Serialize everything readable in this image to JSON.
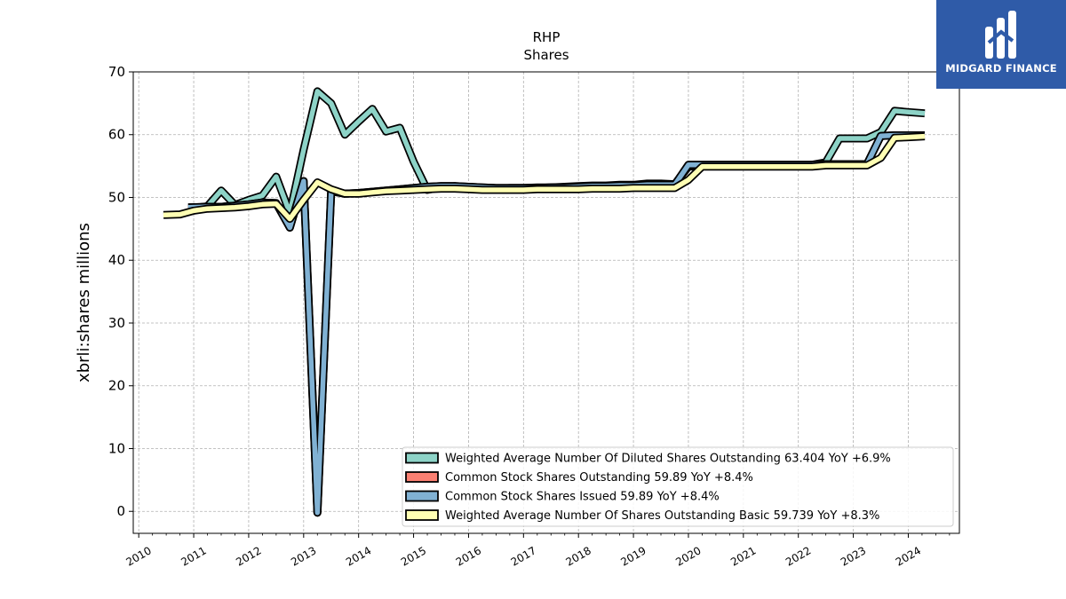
{
  "chart_data": {
    "type": "line",
    "title": "RHP",
    "subtitle": "Shares",
    "ylabel": "xbrli:shares millions",
    "xlim": [
      2009.9,
      2024.93
    ],
    "ylim": [
      -3.5,
      70
    ],
    "yticks": [
      0,
      10,
      20,
      30,
      40,
      50,
      60,
      70
    ],
    "xticks": [
      "2010",
      "2011",
      "2012",
      "2013",
      "2014",
      "2015",
      "2016",
      "2017",
      "2018",
      "2019",
      "2020",
      "2021",
      "2022",
      "2023",
      "2024"
    ],
    "grid": true,
    "legend_position": "lower-right",
    "series": [
      {
        "name": "Weighted Average Number Of Diluted Shares Outstanding  63.404 YoY +6.9%",
        "color": "#8dd3c7",
        "x": [
          2011.0,
          2011.25,
          2011.5,
          2011.75,
          2012.0,
          2012.25,
          2012.5,
          2012.75,
          2013.0,
          2013.25,
          2013.5,
          2013.75,
          2014.0,
          2014.25,
          2014.5,
          2014.75,
          2015.0,
          2015.25,
          2015.5,
          2015.75,
          2016.0,
          2016.25,
          2016.5,
          2016.75,
          2017.0,
          2017.25,
          2017.5,
          2017.75,
          2018.0,
          2018.25,
          2018.5,
          2018.75,
          2019.0,
          2019.25,
          2019.5,
          2019.75,
          2020.0,
          2020.25,
          2020.5,
          2020.75,
          2021.0,
          2021.25,
          2021.5,
          2021.75,
          2022.0,
          2022.25,
          2022.5,
          2022.75,
          2023.0,
          2023.25,
          2023.5,
          2023.75,
          2024.0,
          2024.3
        ],
        "y": [
          48.3,
          48.6,
          51.1,
          48.8,
          49.6,
          50.3,
          53.3,
          47.5,
          57.6,
          66.9,
          65.0,
          60.0,
          62.1,
          64.1,
          60.5,
          61.1,
          55.7,
          51.2,
          51.6,
          51.8,
          51.6,
          51.4,
          51.4,
          51.5,
          51.5,
          51.6,
          51.6,
          51.7,
          51.8,
          51.9,
          51.9,
          52.0,
          52.0,
          52.2,
          52.2,
          52.1,
          54.9,
          55.0,
          55.0,
          55.0,
          55.0,
          55.0,
          55.0,
          55.0,
          55.0,
          55.2,
          55.6,
          59.4,
          59.4,
          59.4,
          60.4,
          63.8,
          63.6,
          63.4
        ]
      },
      {
        "name": "Common Stock Shares Outstanding  59.89 YoY +8.4%",
        "color": "#fb8072",
        "x": [
          2010.9,
          2011.25,
          2011.5,
          2011.75,
          2012.0,
          2012.25,
          2012.5,
          2012.75,
          2013.0,
          2013.25,
          2013.5,
          2013.75,
          2014.0,
          2014.25,
          2014.5,
          2014.75,
          2015.0,
          2015.25,
          2015.5,
          2015.75,
          2016.0,
          2016.25,
          2016.5,
          2016.75,
          2017.0,
          2017.25,
          2017.5,
          2017.75,
          2018.0,
          2018.25,
          2018.5,
          2018.75,
          2019.0,
          2019.25,
          2019.5,
          2019.75,
          2020.0,
          2020.25,
          2020.5,
          2020.75,
          2021.0,
          2021.25,
          2021.5,
          2021.75,
          2022.0,
          2022.25,
          2022.5,
          2022.75,
          2023.0,
          2023.25,
          2023.5,
          2023.75,
          2024.0,
          2024.3
        ],
        "y": [
          48.4,
          48.5,
          48.5,
          48.7,
          48.9,
          49.2,
          49.1,
          45.2,
          52.6,
          -0.2,
          51.0,
          50.6,
          50.7,
          50.9,
          51.1,
          51.3,
          51.5,
          51.7,
          51.8,
          51.8,
          51.7,
          51.6,
          51.5,
          51.5,
          51.5,
          51.5,
          51.6,
          51.6,
          51.7,
          51.8,
          51.8,
          51.9,
          51.9,
          52.0,
          52.0,
          52.0,
          55.2,
          55.2,
          55.2,
          55.2,
          55.2,
          55.2,
          55.2,
          55.2,
          55.2,
          55.2,
          55.3,
          55.3,
          55.3,
          55.3,
          59.8,
          59.9,
          59.9,
          59.89
        ]
      },
      {
        "name": "Common Stock Shares Issued  59.89 YoY +8.4%",
        "color": "#80b1d3",
        "x": [
          2010.9,
          2011.25,
          2011.5,
          2011.75,
          2012.0,
          2012.25,
          2012.5,
          2012.75,
          2013.0,
          2013.25,
          2013.5,
          2013.75,
          2014.0,
          2014.25,
          2014.5,
          2014.75,
          2015.0,
          2015.25,
          2015.5,
          2015.75,
          2016.0,
          2016.25,
          2016.5,
          2016.75,
          2017.0,
          2017.25,
          2017.5,
          2017.75,
          2018.0,
          2018.25,
          2018.5,
          2018.75,
          2019.0,
          2019.25,
          2019.5,
          2019.75,
          2020.0,
          2020.25,
          2020.5,
          2020.75,
          2021.0,
          2021.25,
          2021.5,
          2021.75,
          2022.0,
          2022.25,
          2022.5,
          2022.75,
          2023.0,
          2023.25,
          2023.5,
          2023.75,
          2024.0,
          2024.3
        ],
        "y": [
          48.4,
          48.5,
          48.5,
          48.7,
          48.9,
          49.2,
          49.1,
          45.2,
          52.6,
          -0.2,
          51.0,
          50.6,
          50.7,
          50.9,
          51.1,
          51.3,
          51.5,
          51.7,
          51.8,
          51.8,
          51.7,
          51.6,
          51.5,
          51.5,
          51.5,
          51.5,
          51.6,
          51.6,
          51.7,
          51.8,
          51.8,
          51.9,
          51.9,
          52.0,
          52.0,
          52.0,
          55.2,
          55.2,
          55.2,
          55.2,
          55.2,
          55.2,
          55.2,
          55.2,
          55.2,
          55.2,
          55.3,
          55.3,
          55.3,
          55.3,
          59.8,
          59.9,
          59.9,
          59.89
        ]
      },
      {
        "name": "Weighted Average Number Of Shares Outstanding Basic  59.739 YoY +8.3%",
        "color": "#ffffb3",
        "x": [
          2010.45,
          2010.75,
          2011.0,
          2011.25,
          2011.5,
          2011.75,
          2012.0,
          2012.25,
          2012.5,
          2012.75,
          2013.0,
          2013.25,
          2013.5,
          2013.75,
          2014.0,
          2014.25,
          2014.5,
          2014.75,
          2015.0,
          2015.25,
          2015.5,
          2015.75,
          2016.0,
          2016.25,
          2016.5,
          2016.75,
          2017.0,
          2017.25,
          2017.5,
          2017.75,
          2018.0,
          2018.25,
          2018.5,
          2018.75,
          2019.0,
          2019.25,
          2019.5,
          2019.75,
          2020.0,
          2020.25,
          2020.5,
          2020.75,
          2021.0,
          2021.25,
          2021.5,
          2021.75,
          2022.0,
          2022.25,
          2022.5,
          2022.75,
          2023.0,
          2023.25,
          2023.5,
          2023.75,
          2024.0,
          2024.3
        ],
        "y": [
          47.2,
          47.3,
          47.9,
          48.2,
          48.3,
          48.4,
          48.6,
          48.9,
          49.0,
          46.6,
          49.6,
          52.4,
          51.3,
          50.6,
          50.6,
          50.8,
          51.0,
          51.1,
          51.2,
          51.3,
          51.4,
          51.4,
          51.3,
          51.2,
          51.2,
          51.2,
          51.2,
          51.3,
          51.3,
          51.3,
          51.3,
          51.4,
          51.4,
          51.4,
          51.5,
          51.5,
          51.5,
          51.5,
          52.8,
          54.9,
          54.9,
          54.9,
          54.9,
          54.9,
          54.9,
          54.9,
          54.9,
          54.9,
          55.1,
          55.1,
          55.1,
          55.1,
          56.3,
          59.5,
          59.6,
          59.739
        ]
      }
    ]
  },
  "logo": {
    "brand": "MIDGARD FINANCE"
  }
}
